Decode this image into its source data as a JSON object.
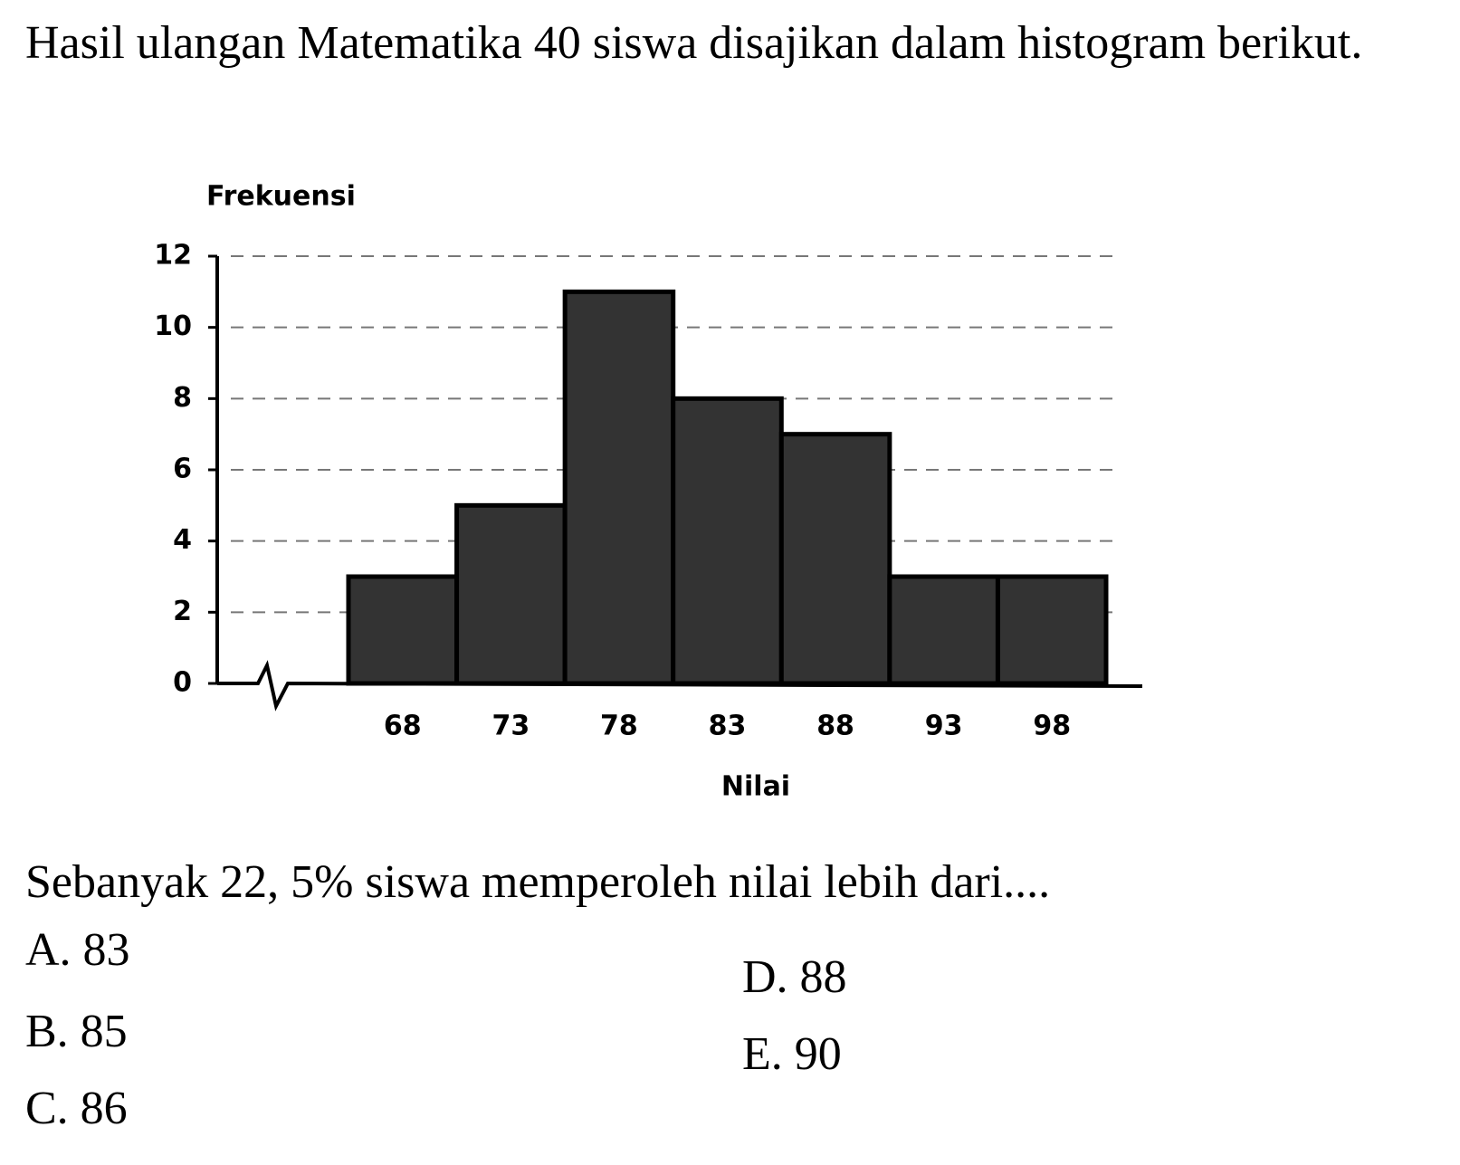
{
  "intro": "Hasil ulangan Matematika 40 siswa disajikan dalam histogram berikut.",
  "chart_data": {
    "type": "bar",
    "y_label": "Frekuensi",
    "x_label": "Nilai",
    "categories": [
      "68",
      "73",
      "78",
      "83",
      "88",
      "93",
      "98"
    ],
    "values": [
      3,
      5,
      11,
      8,
      7,
      3,
      3
    ],
    "color": "#333333",
    "ylim": [
      0,
      12
    ],
    "yticks": [
      0,
      2,
      4,
      6,
      8,
      10,
      12
    ],
    "grid": true
  },
  "question": "Sebanyak 22, 5% siswa memperoleh nilai lebih dari....",
  "options": [
    "A. 83",
    "B. 85",
    "C. 86",
    "D. 88",
    "E. 90"
  ]
}
